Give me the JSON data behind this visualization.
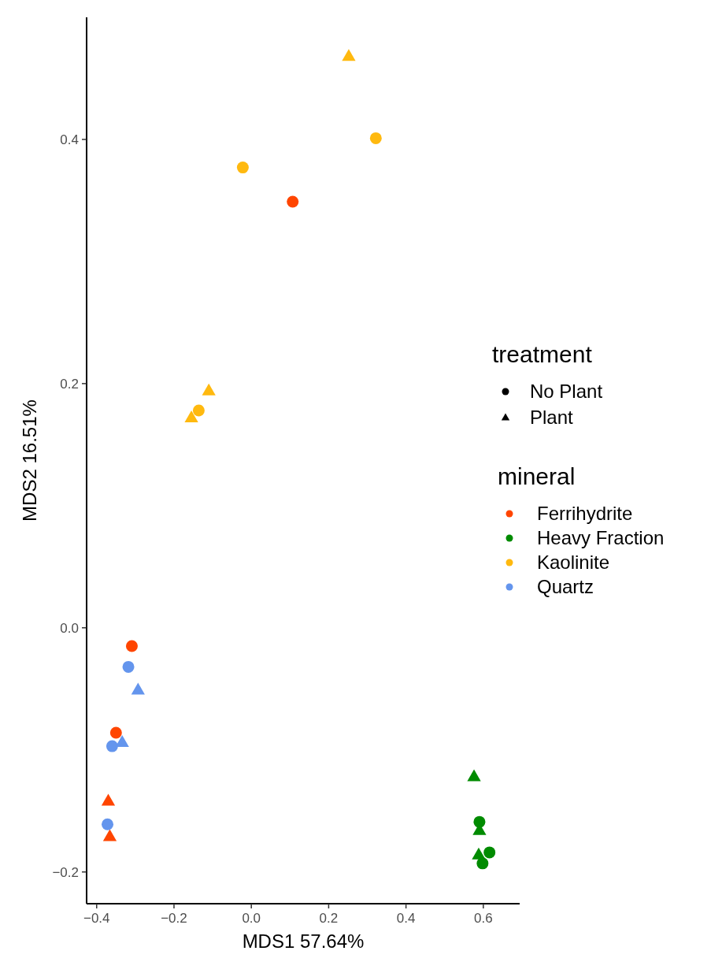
{
  "chart_data": {
    "type": "scatter",
    "xlabel": "MDS1 57.64%",
    "ylabel": "MDS2 16.51%",
    "xlim": [
      -0.426,
      0.694
    ],
    "ylim": [
      -0.226,
      0.5
    ],
    "xticks": [
      {
        "value": -0.4,
        "label": "−0.4"
      },
      {
        "value": -0.2,
        "label": "−0.2"
      },
      {
        "value": 0,
        "label": "0.0"
      },
      {
        "value": 0.2,
        "label": "0.2"
      },
      {
        "value": 0.4,
        "label": "0.4"
      },
      {
        "value": 0.6,
        "label": "0.6"
      }
    ],
    "yticks": [
      {
        "value": -0.2,
        "label": "−0.2"
      },
      {
        "value": 0,
        "label": "0.0"
      },
      {
        "value": 0.2,
        "label": "0.2"
      },
      {
        "value": 0.4,
        "label": "0.4"
      }
    ],
    "grid": false,
    "legend": "right",
    "legend_title": "mineral",
    "annotations": [
      "treatment",
      "No Plant",
      "Plant"
    ],
    "series": [
      {
        "name": "Ferrihydrite",
        "color": "#ff4500",
        "marker": "circle",
        "x": [
          0.107,
          -0.309,
          -0.35
        ],
        "values": [
          0.349,
          -0.015,
          -0.086
        ]
      },
      {
        "color": "#ff4500",
        "marker": "triangle",
        "x": [
          -0.37,
          -0.366
        ],
        "values": [
          -0.142,
          -0.171
        ]
      },
      {
        "name": "Heavy Fraction",
        "color": "#008b00",
        "marker": "circle",
        "x": [
          0.59,
          0.616,
          0.598
        ],
        "values": [
          -0.159,
          -0.184,
          -0.193
        ]
      },
      {
        "color": "#008b00",
        "marker": "triangle",
        "x": [
          0.576,
          0.59,
          0.588
        ],
        "values": [
          -0.122,
          -0.166,
          -0.186
        ]
      },
      {
        "name": "Kaolinite",
        "color": "#ffb90f",
        "marker": "circle",
        "x": [
          0.322,
          -0.022,
          -0.136
        ],
        "values": [
          0.401,
          0.377,
          0.178
        ]
      },
      {
        "color": "#ffb90f",
        "marker": "triangle",
        "x": [
          0.252,
          -0.11,
          -0.155
        ],
        "values": [
          0.468,
          0.194,
          0.172
        ]
      },
      {
        "name": "Quartz",
        "color": "#6495ed",
        "marker": "circle",
        "x": [
          -0.318,
          -0.36,
          -0.372
        ],
        "values": [
          -0.032,
          -0.097,
          -0.161
        ]
      },
      {
        "color": "#6495ed",
        "marker": "triangle",
        "x": [
          -0.293,
          -0.334
        ],
        "values": [
          -0.051,
          -0.094
        ]
      }
    ]
  }
}
